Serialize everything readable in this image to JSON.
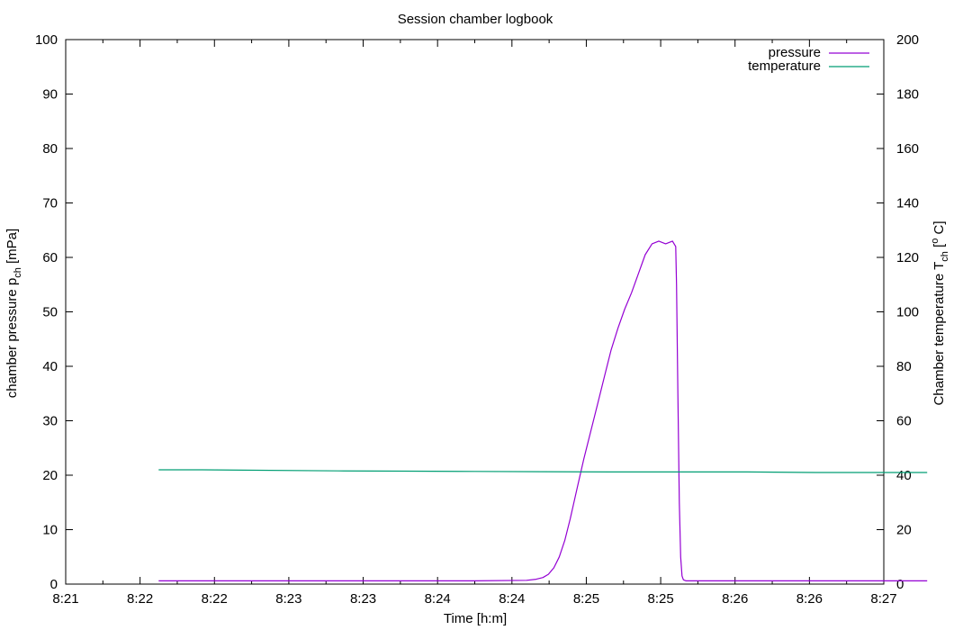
{
  "chart_data": {
    "type": "line",
    "title": "Session chamber logbook",
    "xlabel": "Time [h:m]",
    "ylabel": {
      "main": "chamber pressure p",
      "sub": "ch",
      "unit": " [mPa]"
    },
    "y2label": {
      "main": "Chamber temperature T",
      "sub": "ch",
      "unit_open": " [",
      "sup": "o",
      "unit_close": " C]"
    },
    "x_ticks": [
      "8:21",
      "8:22",
      "8:22",
      "8:23",
      "8:23",
      "8:24",
      "8:24",
      "8:25",
      "8:25",
      "8:26",
      "8:26",
      "8:27"
    ],
    "x_range_minutes": [
      0,
      6
    ],
    "ylim": [
      0,
      100
    ],
    "y_ticks": [
      "0",
      "10",
      "20",
      "30",
      "40",
      "50",
      "60",
      "70",
      "80",
      "90",
      "100"
    ],
    "y2lim": [
      0,
      200
    ],
    "y2_ticks": [
      "0",
      "20",
      "40",
      "60",
      "80",
      "100",
      "120",
      "140",
      "160",
      "180",
      "200"
    ],
    "grid": false,
    "legend_position": "top-right",
    "series": [
      {
        "name": "pressure",
        "color": "#9400d3",
        "axis": "left",
        "x": [
          0.682,
          1.0,
          2.0,
          3.0,
          3.38,
          3.45,
          3.5,
          3.54,
          3.58,
          3.62,
          3.66,
          3.7,
          3.75,
          3.8,
          3.85,
          3.9,
          3.95,
          4.0,
          4.05,
          4.1,
          4.15,
          4.2,
          4.25,
          4.3,
          4.35,
          4.4,
          4.45,
          4.474,
          4.48,
          4.49,
          4.5,
          4.51,
          4.52,
          4.53,
          4.55,
          4.6,
          5.0,
          6.0,
          6.318
        ],
        "y": [
          0.6,
          0.6,
          0.6,
          0.6,
          0.7,
          0.9,
          1.2,
          1.8,
          3.0,
          5.0,
          8.0,
          12.0,
          17.5,
          23.0,
          28.0,
          33.0,
          38.0,
          43.0,
          47.0,
          50.5,
          53.5,
          57.0,
          60.5,
          62.5,
          63.0,
          62.5,
          63.0,
          62.0,
          55.0,
          35.0,
          15.0,
          5.0,
          1.5,
          0.8,
          0.6,
          0.6,
          0.6,
          0.6,
          0.6
        ]
      },
      {
        "name": "temperature",
        "color": "#009e73",
        "axis": "right",
        "x": [
          0.682,
          1.0,
          2.0,
          2.5,
          3.0,
          3.5,
          4.0,
          4.5,
          5.0,
          5.5,
          6.0,
          6.318
        ],
        "y": [
          42.0,
          42.0,
          41.6,
          41.5,
          41.4,
          41.3,
          41.2,
          41.2,
          41.2,
          41.0,
          41.0,
          41.0
        ]
      }
    ]
  }
}
